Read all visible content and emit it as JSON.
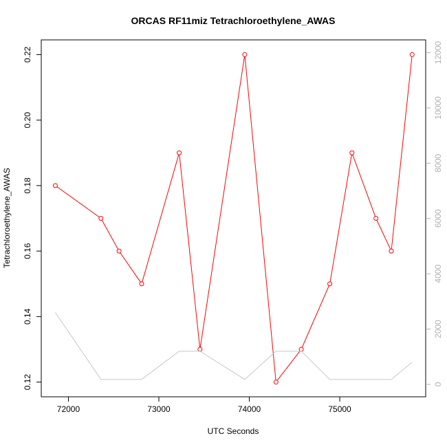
{
  "chart_data": {
    "type": "line",
    "title": "ORCAS RF11miz Tetrachloroethylene_AWAS",
    "xlabel": "UTC Seconds",
    "ylabel": "Tetrachloroethylene_AWAS",
    "xlim": [
      71700,
      75950
    ],
    "ylim": [
      0.1155,
      0.2245
    ],
    "y2lim": [
      -450,
      12460
    ],
    "x_ticks": [
      72000,
      73000,
      74000,
      75000
    ],
    "x_tick_labels": [
      "72000",
      "73000",
      "74000",
      "75000"
    ],
    "y_ticks": [
      0.12,
      0.14,
      0.16,
      0.18,
      0.2,
      0.22
    ],
    "y_tick_labels": [
      "0.12",
      "0.14",
      "0.16",
      "0.18",
      "0.20",
      "0.22"
    ],
    "y2_ticks": [
      0,
      2000,
      4000,
      6000,
      8000,
      10000,
      12000
    ],
    "y2_tick_labels": [
      "0",
      "2000",
      "4000",
      "6000",
      "8000",
      "10000",
      "12000"
    ],
    "grid": false,
    "series": [
      {
        "axis": "left",
        "color": "#ff0000",
        "marker": "open-circle",
        "x": [
          71855,
          72360,
          72560,
          72810,
          73225,
          73455,
          73950,
          74295,
          74575,
          74890,
          75135,
          75400,
          75570,
          75800
        ],
        "values": [
          0.18,
          0.17,
          0.16,
          0.15,
          0.19,
          0.13,
          0.22,
          0.12,
          0.13,
          0.15,
          0.19,
          0.17,
          0.16,
          0.22
        ]
      },
      {
        "axis": "right",
        "color": "#c8c8c8",
        "marker": "none",
        "x": [
          71855,
          72360,
          72810,
          73225,
          73455,
          73950,
          74295,
          74575,
          74890,
          75570,
          75800
        ],
        "values": [
          2600,
          180,
          180,
          1200,
          1200,
          180,
          1200,
          1200,
          180,
          180,
          800
        ]
      }
    ]
  }
}
